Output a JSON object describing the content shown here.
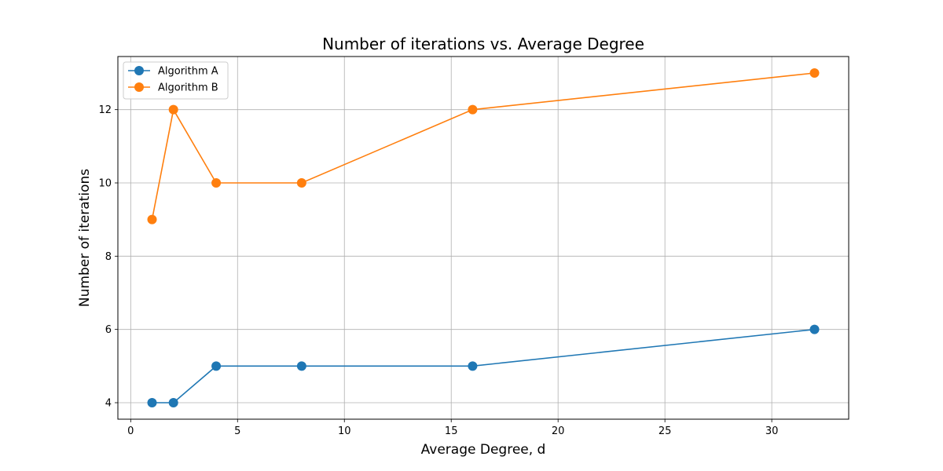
{
  "chart_data": {
    "type": "line",
    "title": "Number of iterations vs. Average Degree",
    "xlabel": "Average Degree, d",
    "ylabel": "Number of iterations",
    "xlim": [
      -0.6,
      33.6
    ],
    "ylim": [
      3.55,
      13.45
    ],
    "xticks": [
      0,
      5,
      10,
      15,
      20,
      25,
      30
    ],
    "yticks": [
      4,
      6,
      8,
      10,
      12
    ],
    "grid": true,
    "legend_position": "top-left",
    "series": [
      {
        "name": "Algorithm A",
        "color": "#1f77b4",
        "x": [
          1,
          2,
          4,
          8,
          16,
          32
        ],
        "y": [
          4,
          4,
          5,
          5,
          5,
          6
        ]
      },
      {
        "name": "Algorithm B",
        "color": "#ff7f0e",
        "x": [
          1,
          2,
          4,
          8,
          16,
          32
        ],
        "y": [
          9,
          12,
          10,
          10,
          12,
          13
        ]
      }
    ]
  }
}
